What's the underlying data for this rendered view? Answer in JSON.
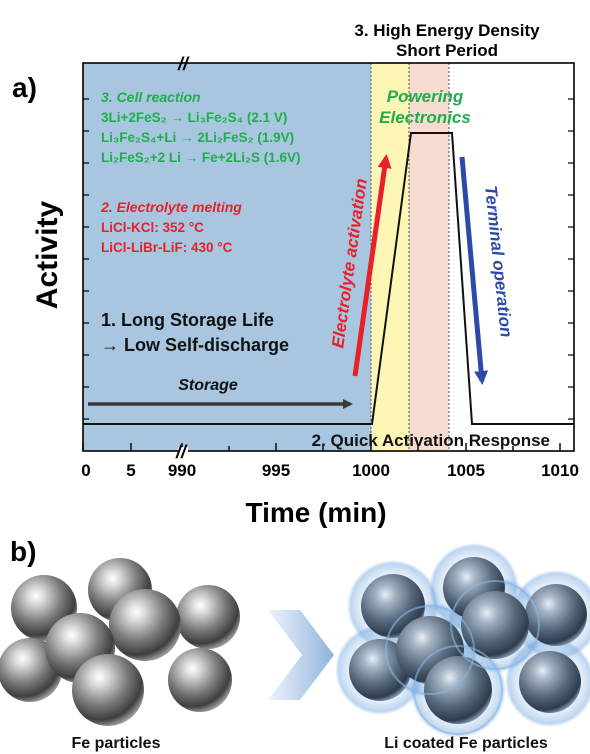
{
  "panel_a": {
    "label": "a)",
    "top_title_line1": "3. High Energy Density",
    "top_title_line2": "Short Period",
    "ylabel": "Activity",
    "xlabel": "Time (min)",
    "x_ticks": [
      "0",
      "5",
      "990",
      "995",
      "1000",
      "1005",
      "1010"
    ],
    "axis_break": "//",
    "cell_reaction": {
      "title": "3. Cell reaction",
      "lines": [
        "3Li+2FeS₂ → Li₃Fe₂S₄ (2.1 V)",
        "Li₃Fe₂S₄+Li → 2Li₂FeS₂ (1.9V)",
        "Li₂FeS₂+2 Li → Fe+2Li₂S (1.6V)"
      ]
    },
    "electrolyte": {
      "title": "2. Electrolyte melting",
      "lines": [
        "LiCl-KCl: 352 °C",
        "LiCl-LiBr-LiF: 430 °C"
      ]
    },
    "storage_life_line1": "1. Long Storage Life",
    "storage_life_line2": "→ Low Self-discharge",
    "storage_label": "Storage",
    "activation_label": "Electrolyte activation",
    "powering_line1": "Powering",
    "powering_line2": "Electronics",
    "terminal_label": "Terminal operation",
    "quick_activation": "2. Quick Activation Response",
    "colors": {
      "storage_bg": "#a9c6e0",
      "activation_bg": "#fdf6b4",
      "operation_bg": "#f8dcd2",
      "green": "#1fae4b",
      "red": "#e8202a",
      "blue": "#2d4aa8",
      "dark_arrow": "#3a3a3a"
    }
  },
  "panel_b": {
    "label": "b)",
    "left_caption": "Fe particles",
    "right_caption": "Li coated Fe particles"
  }
}
